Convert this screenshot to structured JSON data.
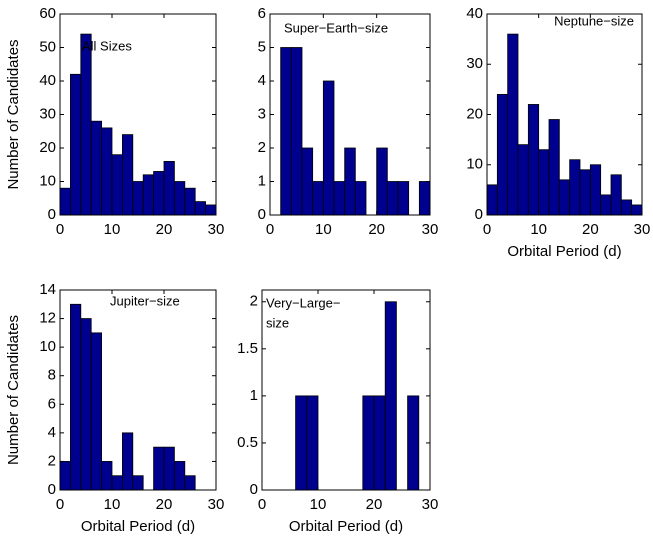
{
  "chart_data": [
    {
      "type": "histogram",
      "label": [
        "All Sizes"
      ],
      "ylabel": "Number of Candidates",
      "bins": [
        0,
        2,
        4,
        6,
        8,
        10,
        12,
        14,
        16,
        18,
        20,
        22,
        24,
        26,
        28,
        30
      ],
      "values": [
        8,
        42,
        54,
        28,
        26,
        18,
        24,
        10,
        12,
        13,
        16,
        10,
        8,
        4,
        3
      ],
      "color": "#00008f",
      "xlim": [
        0,
        30
      ],
      "xticks": [
        0,
        10,
        20,
        30
      ],
      "ylim": [
        0,
        60
      ],
      "yticks": [
        0,
        10,
        20,
        30,
        40,
        50,
        60
      ]
    },
    {
      "type": "histogram",
      "label": [
        "Super−Earth−size"
      ],
      "bins": [
        0,
        2,
        4,
        6,
        8,
        10,
        12,
        14,
        16,
        18,
        20,
        22,
        24,
        26,
        28,
        30
      ],
      "values": [
        0,
        5,
        5,
        2,
        1,
        4,
        1,
        2,
        1,
        0,
        2,
        1,
        1,
        0,
        1
      ],
      "color": "#00008f",
      "xlim": [
        0,
        30
      ],
      "xticks": [
        0,
        10,
        20,
        30
      ],
      "ylim": [
        0,
        6
      ],
      "yticks": [
        0,
        1,
        2,
        3,
        4,
        5,
        6
      ]
    },
    {
      "type": "histogram",
      "label": [
        "Neptune−size"
      ],
      "xlabel": "Orbital Period (d)",
      "bins": [
        0,
        2,
        4,
        6,
        8,
        10,
        12,
        14,
        16,
        18,
        20,
        22,
        24,
        26,
        28,
        30
      ],
      "values": [
        6,
        24,
        36,
        14,
        22,
        13,
        19,
        7,
        11,
        9,
        10,
        4,
        8,
        3,
        2
      ],
      "color": "#00008f",
      "xlim": [
        0,
        30
      ],
      "xticks": [
        0,
        10,
        20,
        30
      ],
      "ylim": [
        0,
        40
      ],
      "yticks": [
        0,
        10,
        20,
        30,
        40
      ]
    },
    {
      "type": "histogram",
      "label": [
        "Jupiter−size"
      ],
      "xlabel": "Orbital Period (d)",
      "ylabel": "Number of Candidates",
      "bins": [
        0,
        2,
        4,
        6,
        8,
        10,
        12,
        14,
        16,
        18,
        20,
        22,
        24,
        26,
        28,
        30
      ],
      "values": [
        2,
        13,
        12,
        11,
        2,
        1,
        4,
        1,
        0,
        3,
        3,
        2,
        1,
        0,
        0
      ],
      "color": "#00008f",
      "xlim": [
        0,
        30
      ],
      "xticks": [
        0,
        10,
        20,
        30
      ],
      "ylim": [
        0,
        14
      ],
      "yticks": [
        0,
        2,
        4,
        6,
        8,
        10,
        12,
        14
      ]
    },
    {
      "type": "histogram",
      "label": [
        "Very−Large−",
        "size"
      ],
      "xlabel": "Orbital Period (d)",
      "bins": [
        0,
        2,
        4,
        6,
        8,
        10,
        12,
        14,
        16,
        18,
        20,
        22,
        24,
        26,
        28,
        30
      ],
      "values": [
        0,
        0,
        0,
        1,
        1,
        0,
        0,
        0,
        0,
        1,
        1,
        2,
        0,
        1,
        0
      ],
      "color": "#00008f",
      "xlim": [
        0,
        30
      ],
      "xticks": [
        0,
        10,
        20,
        30
      ],
      "ylim": [
        0,
        2.125
      ],
      "yticks": [
        0,
        0.5,
        1,
        1.5,
        2
      ]
    }
  ]
}
